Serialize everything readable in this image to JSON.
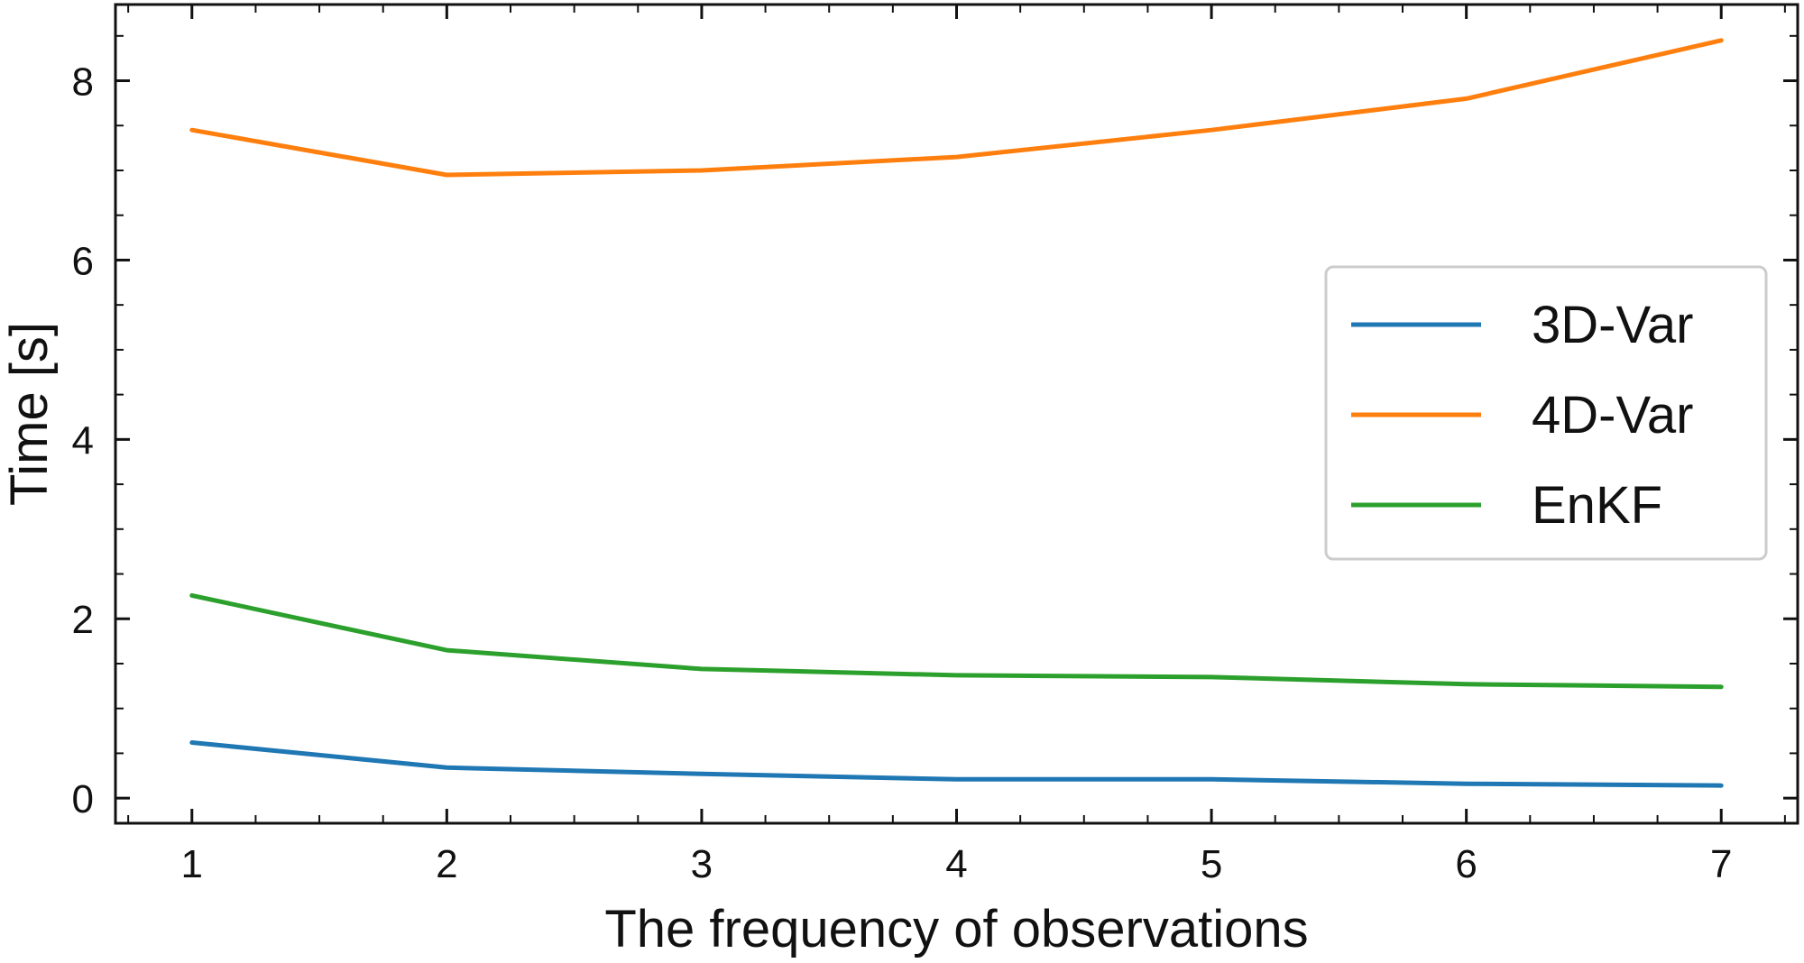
{
  "chart_data": {
    "type": "line",
    "title": "",
    "xlabel": "The frequency of observations",
    "ylabel": "Time [s]",
    "x": [
      1,
      2,
      3,
      4,
      5,
      6,
      7
    ],
    "xlim": [
      0.7,
      7.3
    ],
    "ylim": [
      -0.28,
      8.85
    ],
    "xticks": [
      1,
      2,
      3,
      4,
      5,
      6,
      7
    ],
    "yticks": [
      0,
      2,
      4,
      6,
      8
    ],
    "grid": false,
    "legend_position": "center-right",
    "series": [
      {
        "name": "3D-Var",
        "color": "#1f77b4",
        "values": [
          0.62,
          0.34,
          0.27,
          0.21,
          0.21,
          0.16,
          0.14
        ]
      },
      {
        "name": "4D-Var",
        "color": "#ff7f0e",
        "values": [
          7.45,
          6.95,
          7.0,
          7.15,
          7.45,
          7.8,
          8.45
        ]
      },
      {
        "name": "EnKF",
        "color": "#2ca02c",
        "values": [
          2.26,
          1.65,
          1.44,
          1.37,
          1.35,
          1.27,
          1.24
        ]
      }
    ]
  }
}
